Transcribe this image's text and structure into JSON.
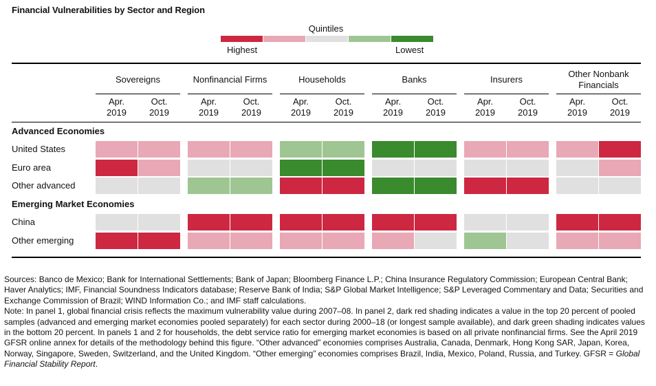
{
  "title": "Financial Vulnerabilities by Sector and Region",
  "legend": {
    "title": "Quintiles",
    "highest_label": "Highest",
    "lowest_label": "Lowest",
    "colors": [
      "#cd2742",
      "#e8a8b5",
      "#e0e0e0",
      "#9fc692",
      "#3a8a2e"
    ]
  },
  "chart_data": {
    "type": "heatmap",
    "sectors": [
      "Sovereigns",
      "Nonfinancial Firms",
      "Households",
      "Banks",
      "Insurers",
      "Other Nonbank Financials"
    ],
    "periods": [
      "Apr. 2019",
      "Oct. 2019"
    ],
    "groups": [
      {
        "name": "Advanced Economies",
        "rows": [
          {
            "label": "United States",
            "quintiles": [
              2,
              2,
              2,
              2,
              4,
              4,
              5,
              5,
              2,
              2,
              2,
              1
            ]
          },
          {
            "label": "Euro area",
            "quintiles": [
              1,
              2,
              3,
              3,
              5,
              5,
              3,
              3,
              3,
              3,
              3,
              2
            ]
          },
          {
            "label": "Other advanced",
            "quintiles": [
              3,
              3,
              4,
              4,
              1,
              1,
              5,
              5,
              1,
              1,
              3,
              3
            ]
          }
        ]
      },
      {
        "name": "Emerging Market Economies",
        "rows": [
          {
            "label": "China",
            "quintiles": [
              3,
              3,
              1,
              1,
              1,
              1,
              1,
              1,
              3,
              3,
              1,
              1
            ]
          },
          {
            "label": "Other emerging",
            "quintiles": [
              1,
              1,
              2,
              2,
              2,
              2,
              2,
              3,
              4,
              3,
              2,
              2
            ]
          }
        ]
      }
    ],
    "quintile_scale": "1 = Highest, 5 = Lowest"
  },
  "notes": {
    "sources": "Sources: Banco de Mexico; Bank for International Settlements; Bank of Japan; Bloomberg Finance L.P.; China Insurance Regulatory Commission; European Central Bank; Haver Analytics; IMF, Financial Soundness Indicators database; Reserve Bank of India; S&P Global Market Intelligence; S&P Leveraged Commentary and Data; Securities and Exchange Commission of Brazil; WIND Information Co.; and IMF staff calculations.",
    "note": "Note: In panel 1, global financial crisis reflects the maximum vulnerability value during 2007–08. In panel 2, dark red shading indicates a value in the top 20 percent of pooled samples (advanced and emerging market economies pooled separately) for each sector during 2000–18 (or longest sample available), and dark green shading indicates values in the bottom 20 percent. In panels 1 and 2 for households, the debt service ratio for emerging market economies is based on all private nonfinancial firms. See the April 2019 GFSR online annex for details of the methodology behind this figure. “Other advanced” economies comprises Australia, Canada, Denmark, Hong Kong SAR, Japan, Korea, Norway, Singapore, Sweden, Switzerland, and the United Kingdom. “Other emerging” economies comprises Brazil, India, Mexico, Poland, Russia, and Turkey. GFSR = ",
    "gfsr_expansion": "Global Financial Stability Report",
    "end": "."
  }
}
